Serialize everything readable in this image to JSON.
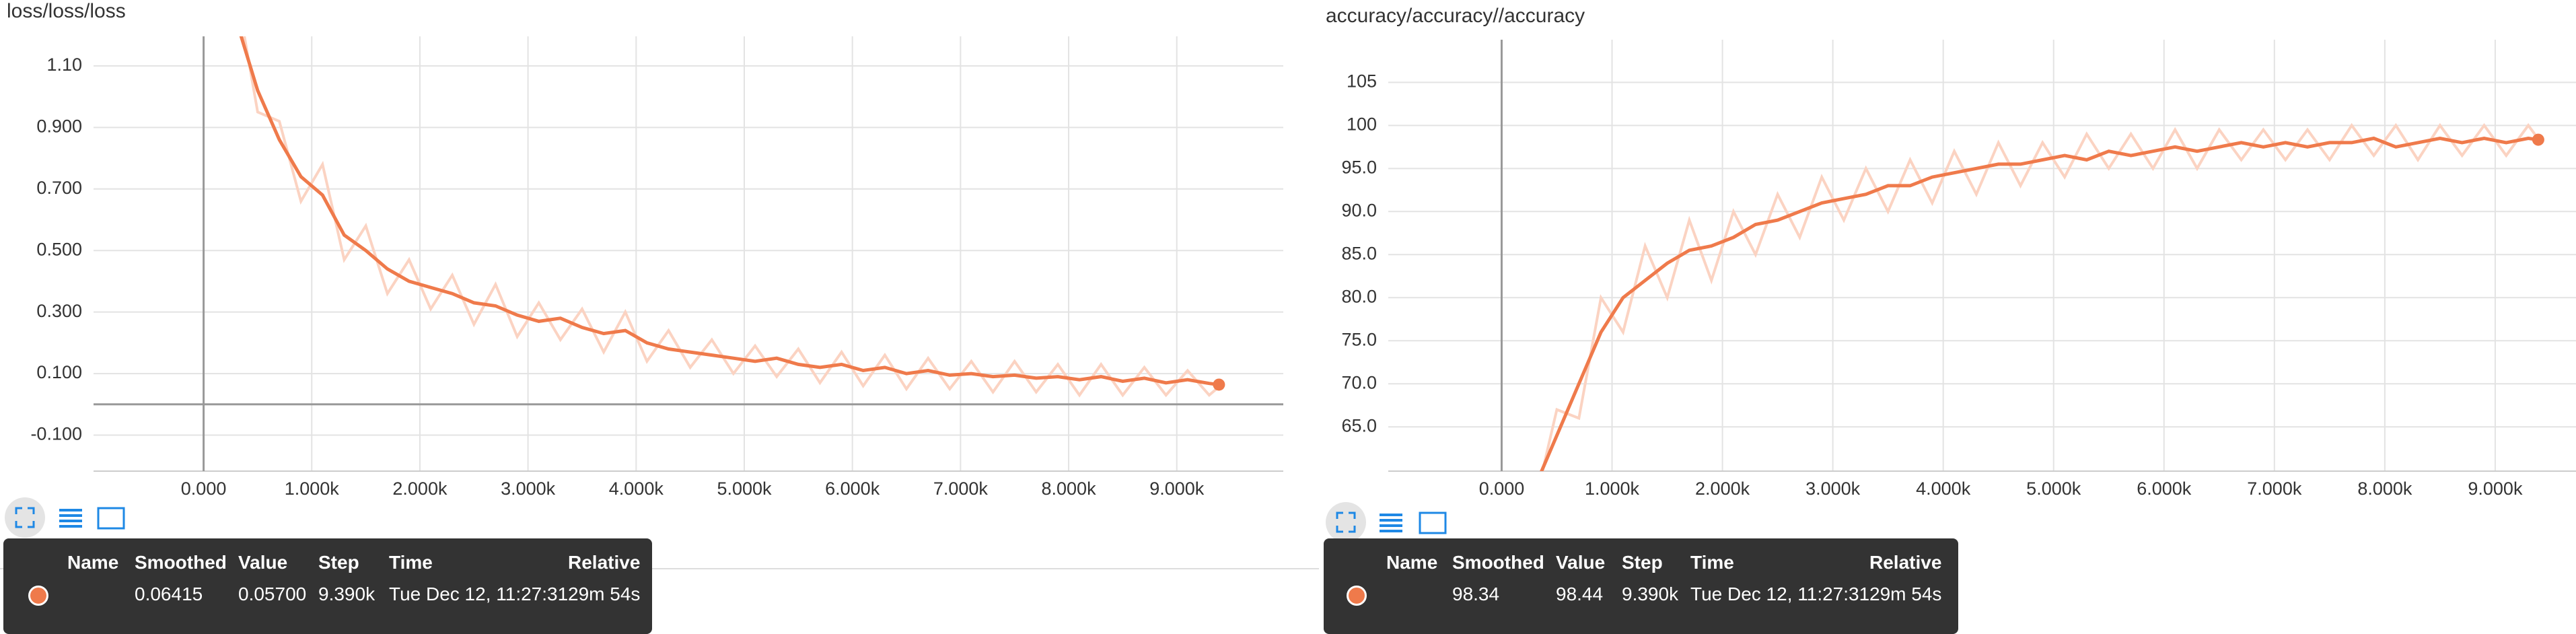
{
  "chart_data": [
    {
      "type": "line",
      "title": "loss/loss/loss",
      "x": [
        300,
        500,
        700,
        900,
        1100,
        1300,
        1500,
        1700,
        1900,
        2100,
        2300,
        2500,
        2700,
        2900,
        3100,
        3300,
        3500,
        3700,
        3900,
        4100,
        4300,
        4500,
        4700,
        4900,
        5100,
        5300,
        5500,
        5700,
        5900,
        6100,
        6300,
        6500,
        6700,
        6900,
        7100,
        7300,
        7500,
        7700,
        7900,
        8100,
        8300,
        8500,
        8700,
        8900,
        9100,
        9300,
        9390
      ],
      "series": [
        {
          "color": "#fbd3c2",
          "values": [
            1.35,
            0.95,
            0.92,
            0.66,
            0.78,
            0.47,
            0.58,
            0.36,
            0.47,
            0.31,
            0.42,
            0.26,
            0.39,
            0.22,
            0.33,
            0.21,
            0.31,
            0.17,
            0.3,
            0.14,
            0.24,
            0.12,
            0.21,
            0.1,
            0.19,
            0.09,
            0.18,
            0.07,
            0.17,
            0.06,
            0.16,
            0.05,
            0.15,
            0.05,
            0.14,
            0.04,
            0.14,
            0.04,
            0.13,
            0.03,
            0.13,
            0.03,
            0.12,
            0.03,
            0.11,
            0.03,
            0.057
          ]
        },
        {
          "color": "#ef7a4b",
          "values": [
            1.25,
            1.02,
            0.86,
            0.74,
            0.68,
            0.55,
            0.5,
            0.44,
            0.4,
            0.38,
            0.36,
            0.33,
            0.32,
            0.29,
            0.27,
            0.28,
            0.25,
            0.23,
            0.24,
            0.2,
            0.18,
            0.17,
            0.16,
            0.15,
            0.14,
            0.15,
            0.13,
            0.12,
            0.13,
            0.11,
            0.12,
            0.1,
            0.11,
            0.095,
            0.1,
            0.09,
            0.095,
            0.085,
            0.09,
            0.08,
            0.09,
            0.075,
            0.085,
            0.07,
            0.08,
            0.068,
            0.06415
          ]
        }
      ],
      "xlim": [
        -1018,
        9985
      ],
      "xticks": [
        {
          "value": 0,
          "label": "0.000"
        },
        {
          "value": 1000,
          "label": "1.000k"
        },
        {
          "value": 2000,
          "label": "2.000k"
        },
        {
          "value": 3000,
          "label": "3.000k"
        },
        {
          "value": 4000,
          "label": "4.000k"
        },
        {
          "value": 5000,
          "label": "5.000k"
        },
        {
          "value": 6000,
          "label": "6.000k"
        },
        {
          "value": 7000,
          "label": "7.000k"
        },
        {
          "value": 8000,
          "label": "8.000k"
        },
        {
          "value": 9000,
          "label": "9.000k"
        }
      ],
      "ylim": [
        -0.217,
        1.196
      ],
      "yticks": [
        {
          "value": 1.1,
          "label": "1.10"
        },
        {
          "value": 0.9,
          "label": "0.900"
        },
        {
          "value": 0.7,
          "label": "0.700"
        },
        {
          "value": 0.5,
          "label": "0.500"
        },
        {
          "value": 0.3,
          "label": "0.300"
        },
        {
          "value": 0.1,
          "label": "0.100"
        },
        {
          "value": -0.1,
          "label": "-0.100"
        }
      ],
      "grid": true,
      "tooltip": {
        "headers": [
          "Name",
          "Smoothed",
          "Value",
          "Step",
          "Time",
          "Relative"
        ],
        "row": [
          "0.06415",
          "0.05700",
          "9.390k",
          "Tue Dec 12, 11:27:31",
          "29m 54s"
        ]
      }
    },
    {
      "type": "line",
      "title": "accuracy/accuracy//accuracy",
      "x": [
        300,
        500,
        700,
        900,
        1100,
        1300,
        1500,
        1700,
        1900,
        2100,
        2300,
        2500,
        2700,
        2900,
        3100,
        3300,
        3500,
        3700,
        3900,
        4100,
        4300,
        4500,
        4700,
        4900,
        5100,
        5300,
        5500,
        5700,
        5900,
        6100,
        6300,
        6500,
        6700,
        6900,
        7100,
        7300,
        7500,
        7700,
        7900,
        8100,
        8300,
        8500,
        8700,
        8900,
        9100,
        9300,
        9390
      ],
      "series": [
        {
          "color": "#fbd3c2",
          "values": [
            56,
            67,
            66,
            80,
            76,
            86,
            80,
            89,
            82,
            90,
            85,
            92,
            87,
            94,
            89,
            95,
            90,
            96,
            91,
            97,
            92,
            98,
            93,
            98,
            94,
            99,
            95,
            99,
            95,
            99.5,
            95,
            99.5,
            96,
            99.5,
            96,
            99.5,
            96,
            100,
            96.5,
            100,
            96,
            100,
            96.5,
            100,
            96.5,
            100,
            98.44
          ]
        },
        {
          "color": "#ef7a4b",
          "values": [
            58,
            64,
            70,
            76,
            80,
            82,
            84,
            85.5,
            86,
            87,
            88.5,
            89,
            90,
            91,
            91.5,
            92,
            93,
            93,
            94,
            94.5,
            95,
            95.5,
            95.5,
            96,
            96.5,
            96,
            97,
            96.5,
            97,
            97.5,
            97,
            97.5,
            98,
            97.5,
            98,
            97.5,
            98,
            98,
            98.5,
            97.5,
            98,
            98.5,
            98,
            98.5,
            98,
            98.5,
            98.34
          ]
        }
      ],
      "xlim": [
        -1027,
        9732
      ],
      "xticks": [
        {
          "value": 0,
          "label": "0.000"
        },
        {
          "value": 1000,
          "label": "1.000k"
        },
        {
          "value": 2000,
          "label": "2.000k"
        },
        {
          "value": 3000,
          "label": "3.000k"
        },
        {
          "value": 4000,
          "label": "4.000k"
        },
        {
          "value": 5000,
          "label": "5.000k"
        },
        {
          "value": 6000,
          "label": "6.000k"
        },
        {
          "value": 7000,
          "label": "7.000k"
        },
        {
          "value": 8000,
          "label": "8.000k"
        },
        {
          "value": 9000,
          "label": "9.000k"
        }
      ],
      "ylim": [
        59.86,
        109.95
      ],
      "yticks": [
        105,
        100,
        {
          "value": 95,
          "label": "95.0"
        },
        {
          "value": 90,
          "label": "90.0"
        },
        {
          "value": 85,
          "label": "85.0"
        },
        {
          "value": 80,
          "label": "80.0"
        },
        {
          "value": 75,
          "label": "75.0"
        },
        {
          "value": 70,
          "label": "70.0"
        },
        {
          "value": 65,
          "label": "65.0"
        }
      ],
      "grid": true,
      "tooltip": {
        "headers": [
          "Name",
          "Smoothed",
          "Value",
          "Step",
          "Time",
          "Relative"
        ],
        "row": [
          "98.34",
          "98.44",
          "9.390k",
          "Tue Dec 12, 11:27:31",
          "29m 54s"
        ]
      }
    }
  ]
}
